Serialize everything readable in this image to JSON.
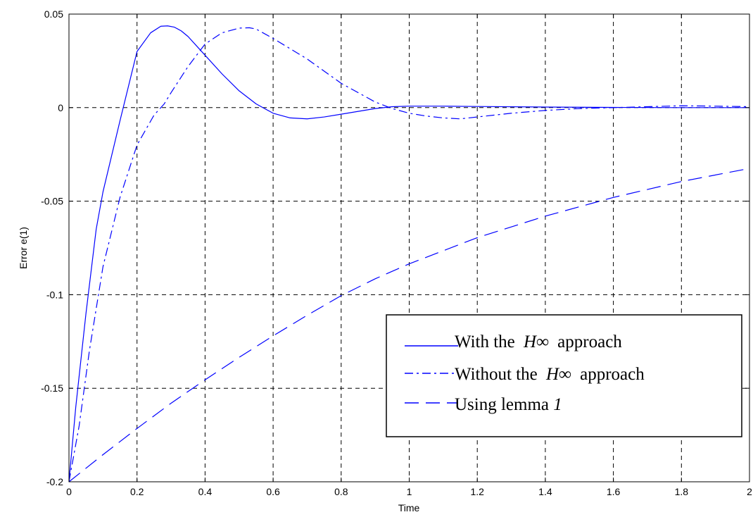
{
  "chart_data": {
    "type": "line",
    "title": "",
    "xlabel": "Time",
    "ylabel": "Error e(1)",
    "xlim": [
      0,
      2
    ],
    "ylim": [
      -0.2,
      0.05
    ],
    "xticks": [
      0,
      0.2,
      0.4,
      0.6,
      0.8,
      1,
      1.2,
      1.4,
      1.6,
      1.8,
      2
    ],
    "xtick_labels": [
      "0",
      "0.2",
      "0.4",
      "0.6",
      "0.8",
      "1",
      "1.2",
      "1.4",
      "1.6",
      "1.8",
      "2"
    ],
    "yticks": [
      0.05,
      0,
      -0.05,
      -0.1,
      -0.15,
      -0.2
    ],
    "ytick_labels": [
      "0.05",
      "0",
      "-0.05",
      "-0.1",
      "-0.15",
      "-0.2"
    ],
    "grid": true,
    "legend_position": "bottom-right",
    "line_color": "#0000ff",
    "series": [
      {
        "name": "With the H∞ approach",
        "legend_prefix": "With the ",
        "legend_symbol": "H∞",
        "legend_suffix": " approach",
        "style": "solid",
        "x": [
          0,
          0.02,
          0.05,
          0.08,
          0.1,
          0.15,
          0.2,
          0.24,
          0.27,
          0.29,
          0.31,
          0.33,
          0.35,
          0.38,
          0.4,
          0.45,
          0.5,
          0.55,
          0.6,
          0.65,
          0.7,
          0.75,
          0.8,
          0.85,
          0.9,
          0.95,
          1.0,
          1.1,
          1.2,
          1.4,
          1.6,
          1.8,
          2.0
        ],
        "y": [
          -0.2,
          -0.16,
          -0.11,
          -0.065,
          -0.045,
          -0.007,
          0.03,
          0.04,
          0.0435,
          0.0437,
          0.043,
          0.041,
          0.038,
          0.032,
          0.028,
          0.018,
          0.009,
          0.002,
          -0.003,
          -0.0055,
          -0.006,
          -0.005,
          -0.0035,
          -0.002,
          -0.0005,
          0.0005,
          0.0008,
          0.0008,
          0.0006,
          0.0003,
          0.0001,
          0.0,
          0.0
        ]
      },
      {
        "name": "Without the H∞ approach",
        "legend_prefix": "Without the ",
        "legend_symbol": "H∞",
        "legend_suffix": " approach",
        "style": "dashdot",
        "x": [
          0,
          0.03,
          0.06,
          0.1,
          0.15,
          0.2,
          0.25,
          0.28,
          0.3,
          0.35,
          0.4,
          0.45,
          0.5,
          0.53,
          0.55,
          0.6,
          0.7,
          0.8,
          0.9,
          0.95,
          1.0,
          1.05,
          1.1,
          1.15,
          1.2,
          1.3,
          1.4,
          1.5,
          1.6,
          1.7,
          1.8,
          1.9,
          2.0
        ],
        "y": [
          -0.2,
          -0.17,
          -0.13,
          -0.085,
          -0.048,
          -0.02,
          -0.004,
          0.002,
          0.008,
          0.022,
          0.034,
          0.04,
          0.0425,
          0.0427,
          0.042,
          0.037,
          0.026,
          0.013,
          0.003,
          -0.0005,
          -0.003,
          -0.0045,
          -0.0055,
          -0.006,
          -0.005,
          -0.003,
          -0.0015,
          -0.0005,
          0.0,
          0.0005,
          0.001,
          0.0008,
          0.0005
        ]
      },
      {
        "name": "Using lemma 1",
        "legend_prefix": "Using lemma ",
        "legend_symbol": "1",
        "legend_suffix": "",
        "style": "longdash",
        "x": [
          0,
          0.1,
          0.2,
          0.3,
          0.4,
          0.5,
          0.6,
          0.7,
          0.8,
          0.9,
          1.0,
          1.2,
          1.4,
          1.6,
          1.8,
          2.0
        ],
        "y": [
          -0.2,
          -0.1855,
          -0.1715,
          -0.158,
          -0.1455,
          -0.1335,
          -0.122,
          -0.111,
          -0.1005,
          -0.0915,
          -0.0835,
          -0.0695,
          -0.058,
          -0.048,
          -0.0395,
          -0.0325
        ]
      }
    ]
  }
}
